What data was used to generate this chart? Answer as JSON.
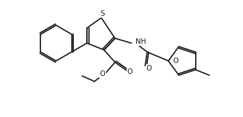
{
  "figsize": [
    3.55,
    1.71
  ],
  "dpi": 100,
  "bg_color": "#ffffff",
  "line_color": "#1a1a1a",
  "line_width": 1.3,
  "atoms": {
    "S": "S",
    "O_ester": "O",
    "O_carbonyl1": "O",
    "O_carbonyl2": "O",
    "O_furan": "O",
    "NH": "NH"
  }
}
